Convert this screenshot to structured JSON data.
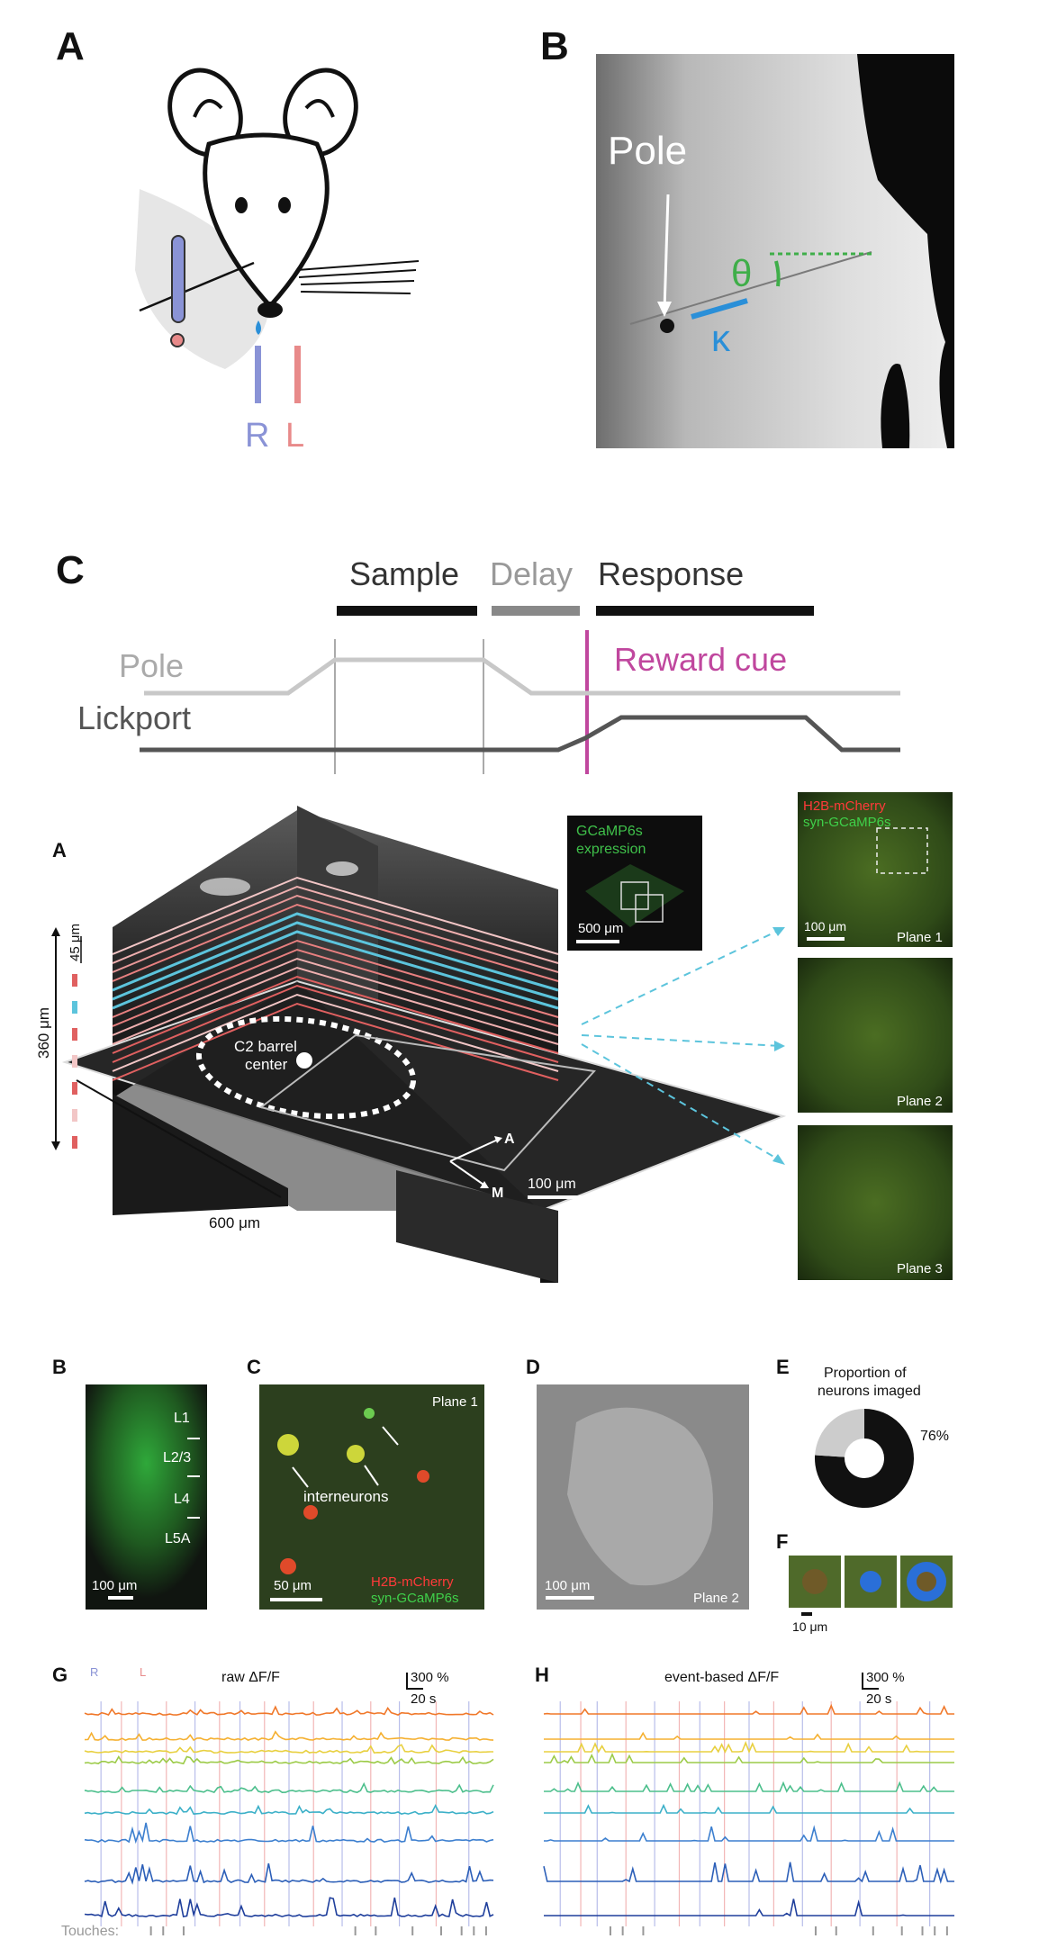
{
  "panels_top": {
    "A_label": "A",
    "B_label": "B",
    "C_label": "C",
    "B_pole": "Pole",
    "B_theta": "θ",
    "B_kappa": "κ",
    "A_R": "R",
    "A_L": "L",
    "C_sample": "Sample",
    "C_delay": "Delay",
    "C_response": "Response",
    "C_pole": "Pole",
    "C_lickport": "Lickport",
    "C_reward": "Reward cue"
  },
  "panels_bottom": {
    "A_label": "A",
    "B_label": "B",
    "C_label": "C",
    "D_label": "D",
    "E_label": "E",
    "F_label": "F",
    "G_label": "G",
    "H_label": "H",
    "depth_45": "45 μm",
    "depth_360": "360 μm",
    "width_600": "600 μm",
    "barrel_line1": "C2 barrel",
    "barrel_line2": "center",
    "axis_A": "A",
    "axis_M": "M",
    "scale_100": "100 μm",
    "inset_line1": "GCaMP6s",
    "inset_line2": "expression",
    "inset_scale": "500 μm",
    "plane1_red": "H2B-mCherry",
    "plane1_green": "syn-GCaMP6s",
    "plane1_scale": "100 μm",
    "plane1": "Plane 1",
    "plane2": "Plane 2",
    "plane3": "Plane 3",
    "B_L1": "L1",
    "B_L23": "L2/3",
    "B_L4": "L4",
    "B_L5A": "L5A",
    "B_scale": "100 μm",
    "C_plane": "Plane 1",
    "C_interneurons": "interneurons",
    "C_scale": "50 μm",
    "C_red": "H2B-mCherry",
    "C_green": "syn-GCaMP6s",
    "D_scale": "100 μm",
    "D_plane": "Plane 2",
    "E_title1": "Proportion of",
    "E_title2": "neurons imaged",
    "E_pct": "76%",
    "F_scale": "10 μm",
    "G_title": "raw ΔF/F",
    "G_R": "R",
    "G_L": "L",
    "G_scale_y": "300 %",
    "G_scale_x": "20 s",
    "H_title": "event-based ΔF/F",
    "H_scale_y": "300 %",
    "H_scale_x": "20 s",
    "touches": "Touches:"
  },
  "E_fraction_imaged": 0.76,
  "colors": {
    "blue_lick": "#8a93d6",
    "red_lick": "#e88a8a",
    "green": "#3fae49",
    "kappa": "#2a8fd8",
    "magenta": "#c0479e",
    "cyan": "#5cc4dc"
  }
}
